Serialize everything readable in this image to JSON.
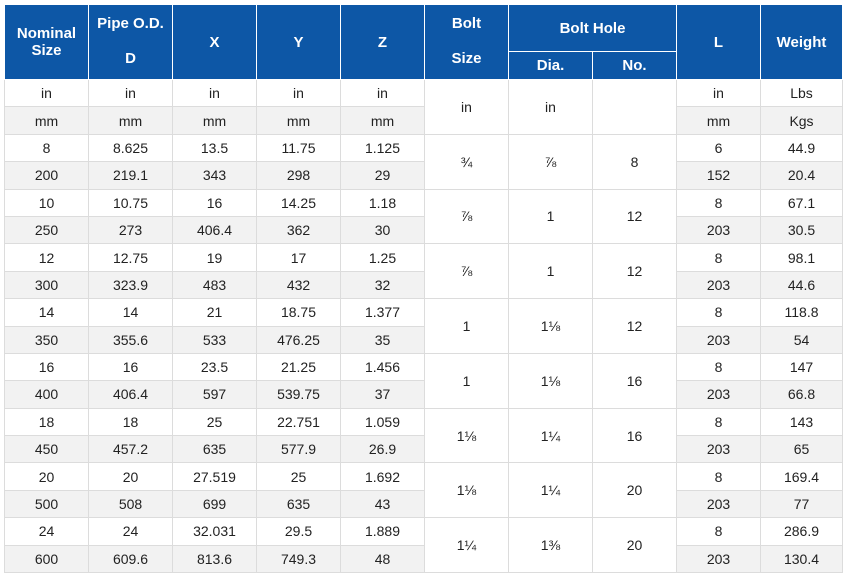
{
  "headers": {
    "nominal_size": "Nominal Size",
    "pipe_od_top": "Pipe O.D.",
    "pipe_od_bottom": "D",
    "x": "X",
    "y": "Y",
    "z": "Z",
    "bolt_top": "Bolt",
    "bolt_bottom": "Size",
    "bolt_hole": "Bolt Hole",
    "dia": "Dia.",
    "no": "No.",
    "l": "L",
    "weight": "Weight"
  },
  "units_in": [
    "in",
    "in",
    "in",
    "in",
    "in",
    "in",
    "in",
    "",
    "in",
    "Lbs"
  ],
  "units_mm": [
    "mm",
    "mm",
    "mm",
    "mm",
    "mm",
    "mm",
    "Kgs"
  ],
  "rows": [
    {
      "in": [
        "8",
        "8.625",
        "13.5",
        "11.75",
        "1.125"
      ],
      "mm": [
        "200",
        "219.1",
        "343",
        "298",
        "29"
      ],
      "bolt_size": "¾",
      "dia": "⅞",
      "no": "8",
      "l_in": "6",
      "l_mm": "152",
      "lbs": "44.9",
      "kgs": "20.4"
    },
    {
      "in": [
        "10",
        "10.75",
        "16",
        "14.25",
        "1.18"
      ],
      "mm": [
        "250",
        "273",
        "406.4",
        "362",
        "30"
      ],
      "bolt_size": "⅞",
      "dia": "1",
      "no": "12",
      "l_in": "8",
      "l_mm": "203",
      "lbs": "67.1",
      "kgs": "30.5"
    },
    {
      "in": [
        "12",
        "12.75",
        "19",
        "17",
        "1.25"
      ],
      "mm": [
        "300",
        "323.9",
        "483",
        "432",
        "32"
      ],
      "bolt_size": "⅞",
      "dia": "1",
      "no": "12",
      "l_in": "8",
      "l_mm": "203",
      "lbs": "98.1",
      "kgs": "44.6"
    },
    {
      "in": [
        "14",
        "14",
        "21",
        "18.75",
        "1.377"
      ],
      "mm": [
        "350",
        "355.6",
        "533",
        "476.25",
        "35"
      ],
      "bolt_size": "1",
      "dia": "1⅛",
      "no": "12",
      "l_in": "8",
      "l_mm": "203",
      "lbs": "118.8",
      "kgs": "54"
    },
    {
      "in": [
        "16",
        "16",
        "23.5",
        "21.25",
        "1.456"
      ],
      "mm": [
        "400",
        "406.4",
        "597",
        "539.75",
        "37"
      ],
      "bolt_size": "1",
      "dia": "1⅛",
      "no": "16",
      "l_in": "8",
      "l_mm": "203",
      "lbs": "147",
      "kgs": "66.8"
    },
    {
      "in": [
        "18",
        "18",
        "25",
        "22.751",
        "1.059"
      ],
      "mm": [
        "450",
        "457.2",
        "635",
        "577.9",
        "26.9"
      ],
      "bolt_size": "1⅛",
      "dia": "1¼",
      "no": "16",
      "l_in": "8",
      "l_mm": "203",
      "lbs": "143",
      "kgs": "65"
    },
    {
      "in": [
        "20",
        "20",
        "27.519",
        "25",
        "1.692"
      ],
      "mm": [
        "500",
        "508",
        "699",
        "635",
        "43"
      ],
      "bolt_size": "1⅛",
      "dia": "1¼",
      "no": "20",
      "l_in": "8",
      "l_mm": "203",
      "lbs": "169.4",
      "kgs": "77"
    },
    {
      "in": [
        "24",
        "24",
        "32.031",
        "29.5",
        "1.889"
      ],
      "mm": [
        "600",
        "609.6",
        "813.6",
        "749.3",
        "48"
      ],
      "bolt_size": "1¼",
      "dia": "1⅜",
      "no": "20",
      "l_in": "8",
      "l_mm": "203",
      "lbs": "286.9",
      "kgs": "130.4"
    }
  ]
}
